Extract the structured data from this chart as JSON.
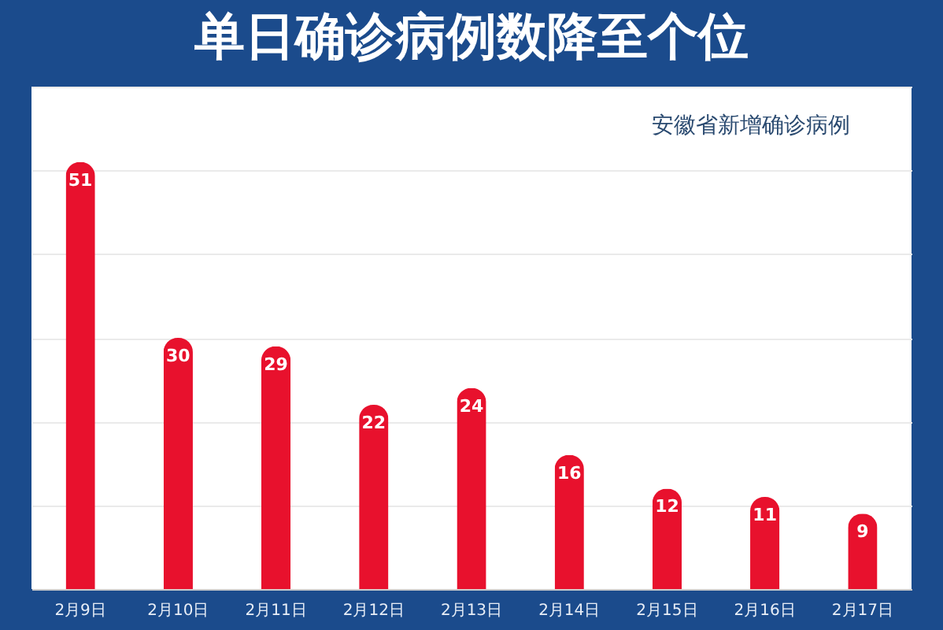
{
  "chart_data": {
    "type": "bar",
    "title": "单日确诊病例数降至个位",
    "subtitle": "安徽省新增确诊病例",
    "categories": [
      "2月9日",
      "2月10日",
      "2月11日",
      "2月12日",
      "2月13日",
      "2月14日",
      "2月15日",
      "2月16日",
      "2月17日"
    ],
    "values": [
      51,
      30,
      29,
      22,
      24,
      16,
      12,
      11,
      9
    ],
    "color": "#e8112d",
    "ylim": [
      0,
      60
    ],
    "yticks": [
      {
        "value": 0,
        "label": null
      },
      {
        "value": 10,
        "label": null
      },
      {
        "value": 20,
        "label": null
      },
      {
        "value": 30,
        "label": null
      },
      {
        "value": 40,
        "label": null
      },
      {
        "value": 50,
        "label": null
      },
      {
        "value": 60,
        "label": null
      }
    ],
    "grid": "y",
    "tick_labels": "x",
    "data_labels": true
  }
}
